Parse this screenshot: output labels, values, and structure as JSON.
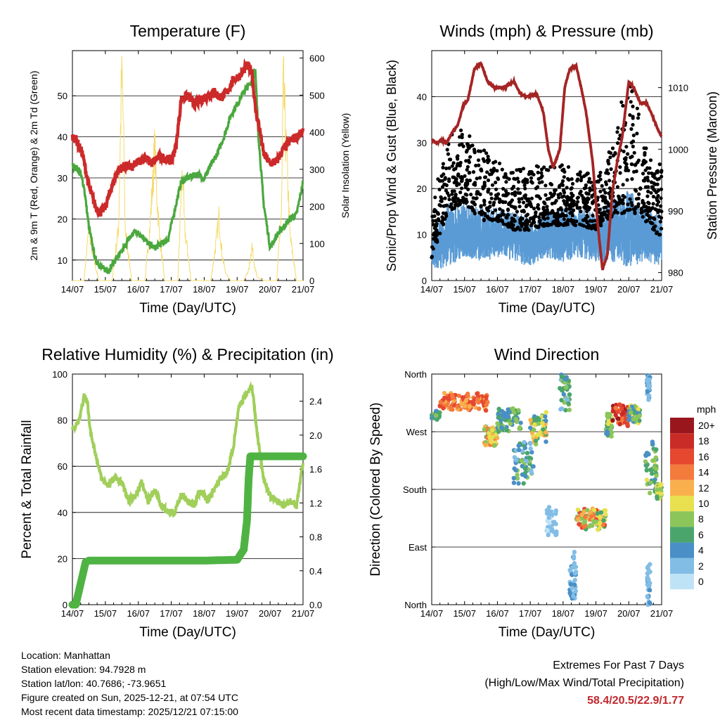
{
  "chart_data": [
    {
      "type": "line",
      "title": "Temperature (F)",
      "xlabel": "Time (Day/UTC)",
      "ylabel": "2m & 9m T (Red, Orange) & 2m Td (Green)",
      "y2label": "Solar Insolation (Yellow)",
      "x_ticks": [
        "14/07",
        "15/07",
        "16/07",
        "17/07",
        "18/07",
        "19/07",
        "20/07",
        "21/07"
      ],
      "ylim": [
        5,
        61
      ],
      "y_ticks": [
        10,
        20,
        30,
        40,
        50
      ],
      "y2lim": [
        0,
        620
      ],
      "y2_ticks": [
        0,
        100,
        200,
        300,
        400,
        500,
        600
      ],
      "grid": true,
      "series": [
        {
          "name": "2m & 9m Temperature",
          "color": "#cc2a2a",
          "axis": "left",
          "x": [
            0,
            0.1,
            0.3,
            0.5,
            0.7,
            0.85,
            1.0,
            1.2,
            1.4,
            1.6,
            1.8,
            2.0,
            2.2,
            2.4,
            2.6,
            2.8,
            3.0,
            3.15,
            3.3,
            3.5,
            3.7,
            3.9,
            4.1,
            4.3,
            4.5,
            4.7,
            4.9,
            5.1,
            5.3,
            5.45,
            5.55,
            5.7,
            5.8,
            6.0,
            6.2,
            6.4,
            6.6,
            6.8,
            7.0
          ],
          "values": [
            40,
            39.5,
            36,
            28,
            23,
            21.5,
            23,
            28,
            32,
            33,
            32.5,
            34,
            35,
            33.5,
            35,
            35,
            34,
            38,
            49,
            50,
            48,
            49,
            50,
            51,
            49.5,
            51,
            54,
            55,
            57.5,
            56,
            47,
            41,
            36,
            33.5,
            34,
            37,
            39,
            40,
            41
          ]
        },
        {
          "name": "2m Dewpoint",
          "color": "#4aa83e",
          "axis": "left",
          "x": [
            0,
            0.2,
            0.35,
            0.5,
            0.7,
            0.9,
            1.1,
            1.3,
            1.5,
            1.7,
            1.9,
            2.1,
            2.3,
            2.5,
            2.7,
            2.9,
            3.1,
            3.3,
            3.5,
            3.8,
            4.0,
            4.2,
            4.4,
            4.6,
            4.8,
            5.0,
            5.2,
            5.4,
            5.55,
            5.65,
            5.8,
            6.0,
            6.2,
            6.4,
            6.6,
            6.8,
            7.0
          ],
          "values": [
            33,
            32,
            28,
            18,
            10,
            8,
            7.5,
            10,
            12,
            15,
            17,
            16,
            14,
            13,
            14,
            15,
            22,
            29,
            30,
            31,
            30,
            33,
            36,
            40,
            45,
            48,
            51,
            53,
            56,
            40,
            24,
            13,
            16,
            18,
            20,
            21,
            29
          ]
        },
        {
          "name": "Solar Insolation",
          "color": "#f5da6a",
          "axis": "right",
          "x": [
            0,
            0.2,
            0.35,
            0.5,
            0.6,
            0.8,
            1.2,
            1.4,
            1.45,
            1.5,
            1.55,
            1.6,
            1.8,
            2.2,
            2.35,
            2.45,
            2.5,
            2.55,
            2.65,
            2.8,
            3.2,
            3.3,
            3.35,
            3.4,
            3.5,
            3.6,
            3.8,
            4.2,
            4.35,
            4.45,
            4.5,
            4.55,
            4.65,
            4.8,
            5.2,
            5.35,
            5.45,
            5.5,
            5.6,
            5.8,
            6.2,
            6.35,
            6.4,
            6.45,
            6.55,
            6.6,
            6.8,
            7.0
          ],
          "values": [
            0,
            0,
            0,
            150,
            80,
            0,
            0,
            150,
            380,
            600,
            420,
            150,
            0,
            0,
            150,
            300,
            380,
            260,
            120,
            0,
            0,
            250,
            310,
            150,
            80,
            0,
            0,
            0,
            100,
            180,
            120,
            70,
            20,
            0,
            0,
            30,
            100,
            60,
            10,
            0,
            0,
            200,
            550,
            450,
            250,
            130,
            0,
            0
          ]
        }
      ]
    },
    {
      "type": "line",
      "title": "Winds (mph) & Pressure (mb)",
      "xlabel": "Time (Day/UTC)",
      "ylabel": "Sonic/Prop Wind & Gust (Blue, Black)",
      "y2label": "Station Pressure (Maroon)",
      "x_ticks": [
        "14/07",
        "15/07",
        "16/07",
        "17/07",
        "18/07",
        "19/07",
        "20/07",
        "21/07"
      ],
      "ylim": [
        0,
        50
      ],
      "y_ticks": [
        0,
        10,
        20,
        30,
        40
      ],
      "y2lim": [
        978.7,
        1016
      ],
      "y2_ticks": [
        980,
        990,
        1000,
        1010
      ],
      "grid": true,
      "series": [
        {
          "name": "Sonic/Prop Wind",
          "color": "#5a9bd5",
          "axis": "left",
          "style": "band",
          "x": [
            0,
            0.5,
            1.0,
            1.5,
            2.0,
            2.5,
            3.0,
            3.5,
            4.0,
            4.5,
            5.0,
            5.5,
            6.0,
            6.5,
            7.0
          ],
          "low": [
            2,
            3,
            5,
            4,
            5,
            4,
            3,
            5,
            4,
            5,
            4,
            4,
            3,
            4,
            3
          ],
          "high": [
            10,
            17,
            17,
            16,
            16,
            15,
            14,
            15,
            16,
            16,
            15,
            18,
            20,
            16,
            14
          ]
        },
        {
          "name": "Gust",
          "color": "#000000",
          "axis": "left",
          "style": "scatter",
          "x": [
            0,
            0.5,
            1.0,
            1.5,
            2.0,
            2.5,
            3.0,
            3.5,
            4.0,
            4.5,
            5.0,
            5.5,
            6.0,
            6.5,
            7.0
          ],
          "low": [
            5,
            15,
            17,
            13,
            13,
            11,
            11,
            12,
            12,
            12,
            11,
            14,
            15,
            13,
            9
          ],
          "high": [
            16,
            32,
            33,
            29,
            26,
            24,
            25,
            25,
            26,
            25,
            22,
            30,
            46,
            30,
            25
          ]
        },
        {
          "name": "Station Pressure",
          "color": "#a52424",
          "axis": "right",
          "x": [
            0,
            0.15,
            0.3,
            0.45,
            0.6,
            0.8,
            0.95,
            1.1,
            1.3,
            1.5,
            1.7,
            1.9,
            2.2,
            2.5,
            2.7,
            2.9,
            3.2,
            3.4,
            3.55,
            3.7,
            3.9,
            4.05,
            4.2,
            4.4,
            4.55,
            4.7,
            4.9,
            5.05,
            5.2,
            5.35,
            5.5,
            5.65,
            5.8,
            6.0,
            6.15,
            6.35,
            6.55,
            6.75,
            6.9,
            7.0
          ],
          "values": [
            1001.5,
            1001,
            1001.5,
            1001,
            1002.5,
            1004,
            1007,
            1008,
            1013,
            1014,
            1011,
            1010,
            1010,
            1011,
            1009,
            1008.5,
            1009,
            1006,
            1000,
            997,
            1000,
            1010,
            1013,
            1013.5,
            1010,
            1006,
            998,
            988,
            980.5,
            983,
            993,
            998,
            1002,
            1011,
            1010,
            1007.5,
            1007.5,
            1005,
            1003,
            1002
          ]
        }
      ]
    },
    {
      "type": "line",
      "title": "Relative Humidity (%) & Precipitation (in)",
      "xlabel": "Time (Day/UTC)",
      "ylabel": "Percent & Total Rainfall",
      "x_ticks": [
        "14/07",
        "15/07",
        "16/07",
        "17/07",
        "18/07",
        "19/07",
        "20/07",
        "21/07"
      ],
      "ylim": [
        0,
        100
      ],
      "y_ticks": [
        0,
        20,
        40,
        60,
        80,
        100
      ],
      "y2lim": [
        0,
        2.72
      ],
      "y2_ticks": [
        "0.0",
        "0.4",
        "0.8",
        "1.2",
        "1.6",
        "2.0",
        "2.4"
      ],
      "grid": true,
      "series": [
        {
          "name": "Relative Humidity",
          "color": "#a0cf5a",
          "axis": "left",
          "x": [
            0,
            0.2,
            0.35,
            0.45,
            0.55,
            0.7,
            0.9,
            1.1,
            1.3,
            1.5,
            1.7,
            1.9,
            2.1,
            2.3,
            2.5,
            2.7,
            2.9,
            3.1,
            3.3,
            3.5,
            3.7,
            3.9,
            4.1,
            4.3,
            4.5,
            4.7,
            4.9,
            5.05,
            5.2,
            5.3,
            5.45,
            5.6,
            5.8,
            6.0,
            6.2,
            6.4,
            6.6,
            6.8,
            7.0
          ],
          "values": [
            76,
            80,
            90,
            88,
            75,
            65,
            54,
            52,
            55,
            53,
            45,
            47,
            53,
            45,
            50,
            43,
            40,
            40,
            48,
            45,
            43,
            50,
            45,
            50,
            55,
            57,
            70,
            85,
            90,
            92,
            95,
            75,
            55,
            47,
            45,
            43,
            45,
            43,
            62
          ]
        },
        {
          "name": "Total Rainfall",
          "color": "#4fb343",
          "axis": "right",
          "x": [
            0,
            0.1,
            0.25,
            0.4,
            0.5,
            1.0,
            2.0,
            3.0,
            4.0,
            5.0,
            5.2,
            5.3,
            5.35,
            5.4,
            5.5,
            6.0,
            7.0
          ],
          "values": [
            0,
            0,
            0.25,
            0.5,
            0.52,
            0.52,
            0.52,
            0.52,
            0.52,
            0.53,
            0.65,
            1.0,
            1.5,
            1.75,
            1.75,
            1.75,
            1.75
          ]
        }
      ]
    },
    {
      "type": "scatter",
      "title": "Wind Direction",
      "xlabel": "Time (Day/UTC)",
      "ylabel": "Direction (Colored By Speed)",
      "x_ticks": [
        "14/07",
        "15/07",
        "16/07",
        "17/07",
        "18/07",
        "19/07",
        "20/07",
        "21/07"
      ],
      "y_ticks": [
        "North",
        "East",
        "South",
        "West",
        "North"
      ],
      "y_tick_values": [
        0,
        90,
        180,
        270,
        360
      ],
      "ylim": [
        0,
        360
      ],
      "grid": true,
      "legend": {
        "title": "mph",
        "labels": [
          "20+",
          "18",
          "16",
          "14",
          "12",
          "10",
          "8",
          "6",
          "4",
          "2",
          "0"
        ],
        "colors": [
          "#99171c",
          "#c92c26",
          "#e6472f",
          "#f37b3c",
          "#f9b04c",
          "#e8e04f",
          "#8cc55a",
          "#4aa56d",
          "#4a8fc6",
          "#82bde6",
          "#bfe3f6"
        ]
      },
      "clusters": [
        {
          "x": [
            0.0,
            0.25
          ],
          "dir": [
            300,
            290
          ],
          "speed": [
            4,
            8
          ]
        },
        {
          "x": [
            0.25,
            1.7
          ],
          "dir": [
            328,
            305
          ],
          "speed": [
            12,
            17
          ]
        },
        {
          "x": [
            1.6,
            2.0
          ],
          "dir": [
            278,
            248
          ],
          "speed": [
            6,
            15
          ]
        },
        {
          "x": [
            2.0,
            2.75
          ],
          "dir": [
            305,
            270
          ],
          "speed": [
            3,
            9
          ]
        },
        {
          "x": [
            2.5,
            3.1
          ],
          "dir": [
            255,
            190
          ],
          "speed": [
            2,
            8
          ]
        },
        {
          "x": [
            3.0,
            3.5
          ],
          "dir": [
            300,
            252
          ],
          "speed": [
            4,
            12
          ]
        },
        {
          "x": [
            3.5,
            3.8
          ],
          "dir": [
            150,
            110
          ],
          "speed": [
            0,
            3
          ]
        },
        {
          "x": [
            3.9,
            4.2
          ],
          "dir": [
            360,
            300
          ],
          "speed": [
            2,
            9
          ]
        },
        {
          "x": [
            4.2,
            4.4
          ],
          "dir": [
            80,
            8
          ],
          "speed": [
            1,
            4
          ]
        },
        {
          "x": [
            4.4,
            5.3
          ],
          "dir": [
            150,
            118
          ],
          "speed": [
            5,
            16
          ]
        },
        {
          "x": [
            5.3,
            5.5
          ],
          "dir": [
            300,
            262
          ],
          "speed": [
            3,
            10
          ]
        },
        {
          "x": [
            5.5,
            6.0
          ],
          "dir": [
            312,
            280
          ],
          "speed": [
            14,
            20
          ]
        },
        {
          "x": [
            6.0,
            6.35
          ],
          "dir": [
            310,
            285
          ],
          "speed": [
            3,
            10
          ]
        },
        {
          "x": [
            6.5,
            6.85
          ],
          "dir": [
            255,
            170
          ],
          "speed": [
            3,
            10
          ]
        },
        {
          "x": [
            6.85,
            7.0
          ],
          "dir": [
            190,
            165
          ],
          "speed": [
            6,
            11
          ]
        },
        {
          "x": [
            6.55,
            6.65
          ],
          "dir": [
            360,
            320
          ],
          "speed": [
            1,
            4
          ]
        },
        {
          "x": [
            6.55,
            6.65
          ],
          "dir": [
            65,
            0
          ],
          "speed": [
            1,
            4
          ]
        }
      ]
    }
  ],
  "info": {
    "location": "Location: Manhattan",
    "elevation": "Station elevation: 94.7928 m",
    "latlon": "Station lat/lon: 40.7686; -73.9651",
    "created": "Figure created on Sun, 2025-12-21, at 07:54 UTC",
    "recent": "Most recent data timestamp: 2025/12/21 07:15:00"
  },
  "extremes": {
    "title": "Extremes For Past 7 Days",
    "subtitle": "(High/Low/Max Wind/Total Precipitation)",
    "values": "58.4/20.5/22.9/1.77"
  }
}
